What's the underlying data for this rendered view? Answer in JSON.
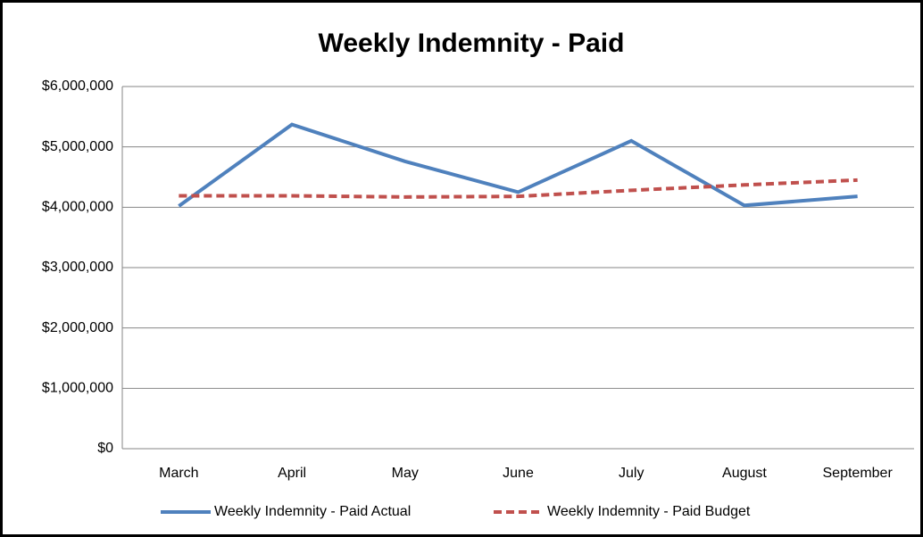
{
  "chart_data": {
    "type": "line",
    "title": "Weekly Indemnity - Paid",
    "categories": [
      "March",
      "April",
      "May",
      "June",
      "July",
      "August",
      "September"
    ],
    "series": [
      {
        "name": "Weekly Indemnity - Paid Actual",
        "color": "#4f81bd",
        "dash": false,
        "values": [
          4020000,
          5370000,
          4760000,
          4250000,
          5100000,
          4030000,
          4180000
        ]
      },
      {
        "name": "Weekly Indemnity - Paid Budget",
        "color": "#c0504d",
        "dash": true,
        "values": [
          4190000,
          4190000,
          4170000,
          4180000,
          4280000,
          4370000,
          4450000
        ]
      }
    ],
    "ylim": [
      0,
      6000000
    ],
    "yticks": [
      {
        "value": 0,
        "label": "$0"
      },
      {
        "value": 1000000,
        "label": "$1,000,000"
      },
      {
        "value": 2000000,
        "label": "$2,000,000"
      },
      {
        "value": 3000000,
        "label": "$3,000,000"
      },
      {
        "value": 4000000,
        "label": "$4,000,000"
      },
      {
        "value": 5000000,
        "label": "$5,000,000"
      },
      {
        "value": 6000000,
        "label": "$6,000,000"
      }
    ],
    "grid": true,
    "legend": "bottom"
  }
}
